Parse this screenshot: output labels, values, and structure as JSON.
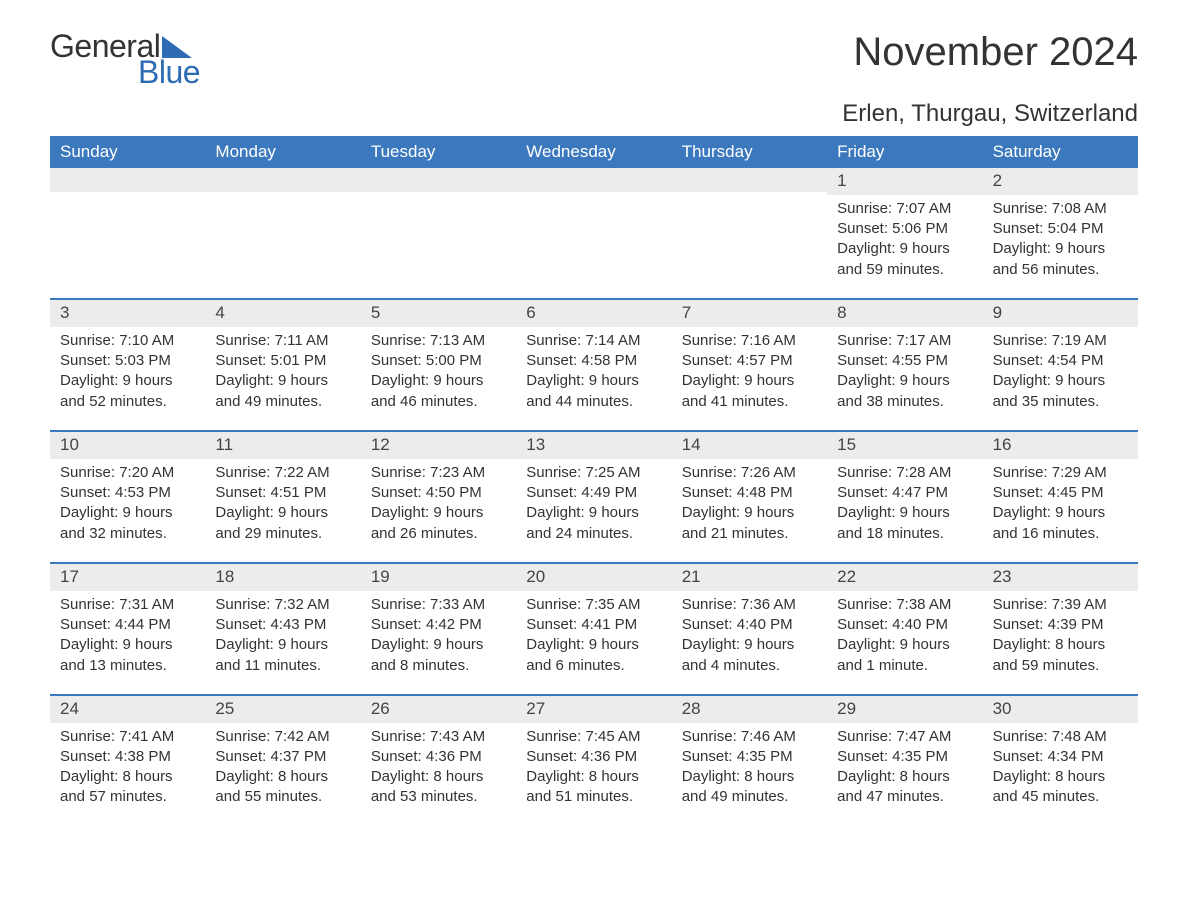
{
  "logo": {
    "text1": "General",
    "text2": "Blue"
  },
  "title": "November 2024",
  "location": "Erlen, Thurgau, Switzerland",
  "colors": {
    "header_bg": "#3b78bd",
    "header_text": "#ffffff",
    "accent": "#2d6cb4",
    "daynum_bg": "#ececec",
    "body_text": "#333333",
    "background": "#ffffff"
  },
  "layout": {
    "columns": 7,
    "rows": 5,
    "font_family": "Arial",
    "title_fontsize": 40,
    "location_fontsize": 24,
    "header_fontsize": 17,
    "cell_fontsize": 15
  },
  "day_names": [
    "Sunday",
    "Monday",
    "Tuesday",
    "Wednesday",
    "Thursday",
    "Friday",
    "Saturday"
  ],
  "weeks": [
    [
      {
        "day": "",
        "sunrise": "",
        "sunset": "",
        "daylight": ""
      },
      {
        "day": "",
        "sunrise": "",
        "sunset": "",
        "daylight": ""
      },
      {
        "day": "",
        "sunrise": "",
        "sunset": "",
        "daylight": ""
      },
      {
        "day": "",
        "sunrise": "",
        "sunset": "",
        "daylight": ""
      },
      {
        "day": "",
        "sunrise": "",
        "sunset": "",
        "daylight": ""
      },
      {
        "day": "1",
        "sunrise": "Sunrise: 7:07 AM",
        "sunset": "Sunset: 5:06 PM",
        "daylight": "Daylight: 9 hours and 59 minutes."
      },
      {
        "day": "2",
        "sunrise": "Sunrise: 7:08 AM",
        "sunset": "Sunset: 5:04 PM",
        "daylight": "Daylight: 9 hours and 56 minutes."
      }
    ],
    [
      {
        "day": "3",
        "sunrise": "Sunrise: 7:10 AM",
        "sunset": "Sunset: 5:03 PM",
        "daylight": "Daylight: 9 hours and 52 minutes."
      },
      {
        "day": "4",
        "sunrise": "Sunrise: 7:11 AM",
        "sunset": "Sunset: 5:01 PM",
        "daylight": "Daylight: 9 hours and 49 minutes."
      },
      {
        "day": "5",
        "sunrise": "Sunrise: 7:13 AM",
        "sunset": "Sunset: 5:00 PM",
        "daylight": "Daylight: 9 hours and 46 minutes."
      },
      {
        "day": "6",
        "sunrise": "Sunrise: 7:14 AM",
        "sunset": "Sunset: 4:58 PM",
        "daylight": "Daylight: 9 hours and 44 minutes."
      },
      {
        "day": "7",
        "sunrise": "Sunrise: 7:16 AM",
        "sunset": "Sunset: 4:57 PM",
        "daylight": "Daylight: 9 hours and 41 minutes."
      },
      {
        "day": "8",
        "sunrise": "Sunrise: 7:17 AM",
        "sunset": "Sunset: 4:55 PM",
        "daylight": "Daylight: 9 hours and 38 minutes."
      },
      {
        "day": "9",
        "sunrise": "Sunrise: 7:19 AM",
        "sunset": "Sunset: 4:54 PM",
        "daylight": "Daylight: 9 hours and 35 minutes."
      }
    ],
    [
      {
        "day": "10",
        "sunrise": "Sunrise: 7:20 AM",
        "sunset": "Sunset: 4:53 PM",
        "daylight": "Daylight: 9 hours and 32 minutes."
      },
      {
        "day": "11",
        "sunrise": "Sunrise: 7:22 AM",
        "sunset": "Sunset: 4:51 PM",
        "daylight": "Daylight: 9 hours and 29 minutes."
      },
      {
        "day": "12",
        "sunrise": "Sunrise: 7:23 AM",
        "sunset": "Sunset: 4:50 PM",
        "daylight": "Daylight: 9 hours and 26 minutes."
      },
      {
        "day": "13",
        "sunrise": "Sunrise: 7:25 AM",
        "sunset": "Sunset: 4:49 PM",
        "daylight": "Daylight: 9 hours and 24 minutes."
      },
      {
        "day": "14",
        "sunrise": "Sunrise: 7:26 AM",
        "sunset": "Sunset: 4:48 PM",
        "daylight": "Daylight: 9 hours and 21 minutes."
      },
      {
        "day": "15",
        "sunrise": "Sunrise: 7:28 AM",
        "sunset": "Sunset: 4:47 PM",
        "daylight": "Daylight: 9 hours and 18 minutes."
      },
      {
        "day": "16",
        "sunrise": "Sunrise: 7:29 AM",
        "sunset": "Sunset: 4:45 PM",
        "daylight": "Daylight: 9 hours and 16 minutes."
      }
    ],
    [
      {
        "day": "17",
        "sunrise": "Sunrise: 7:31 AM",
        "sunset": "Sunset: 4:44 PM",
        "daylight": "Daylight: 9 hours and 13 minutes."
      },
      {
        "day": "18",
        "sunrise": "Sunrise: 7:32 AM",
        "sunset": "Sunset: 4:43 PM",
        "daylight": "Daylight: 9 hours and 11 minutes."
      },
      {
        "day": "19",
        "sunrise": "Sunrise: 7:33 AM",
        "sunset": "Sunset: 4:42 PM",
        "daylight": "Daylight: 9 hours and 8 minutes."
      },
      {
        "day": "20",
        "sunrise": "Sunrise: 7:35 AM",
        "sunset": "Sunset: 4:41 PM",
        "daylight": "Daylight: 9 hours and 6 minutes."
      },
      {
        "day": "21",
        "sunrise": "Sunrise: 7:36 AM",
        "sunset": "Sunset: 4:40 PM",
        "daylight": "Daylight: 9 hours and 4 minutes."
      },
      {
        "day": "22",
        "sunrise": "Sunrise: 7:38 AM",
        "sunset": "Sunset: 4:40 PM",
        "daylight": "Daylight: 9 hours and 1 minute."
      },
      {
        "day": "23",
        "sunrise": "Sunrise: 7:39 AM",
        "sunset": "Sunset: 4:39 PM",
        "daylight": "Daylight: 8 hours and 59 minutes."
      }
    ],
    [
      {
        "day": "24",
        "sunrise": "Sunrise: 7:41 AM",
        "sunset": "Sunset: 4:38 PM",
        "daylight": "Daylight: 8 hours and 57 minutes."
      },
      {
        "day": "25",
        "sunrise": "Sunrise: 7:42 AM",
        "sunset": "Sunset: 4:37 PM",
        "daylight": "Daylight: 8 hours and 55 minutes."
      },
      {
        "day": "26",
        "sunrise": "Sunrise: 7:43 AM",
        "sunset": "Sunset: 4:36 PM",
        "daylight": "Daylight: 8 hours and 53 minutes."
      },
      {
        "day": "27",
        "sunrise": "Sunrise: 7:45 AM",
        "sunset": "Sunset: 4:36 PM",
        "daylight": "Daylight: 8 hours and 51 minutes."
      },
      {
        "day": "28",
        "sunrise": "Sunrise: 7:46 AM",
        "sunset": "Sunset: 4:35 PM",
        "daylight": "Daylight: 8 hours and 49 minutes."
      },
      {
        "day": "29",
        "sunrise": "Sunrise: 7:47 AM",
        "sunset": "Sunset: 4:35 PM",
        "daylight": "Daylight: 8 hours and 47 minutes."
      },
      {
        "day": "30",
        "sunrise": "Sunrise: 7:48 AM",
        "sunset": "Sunset: 4:34 PM",
        "daylight": "Daylight: 8 hours and 45 minutes."
      }
    ]
  ]
}
